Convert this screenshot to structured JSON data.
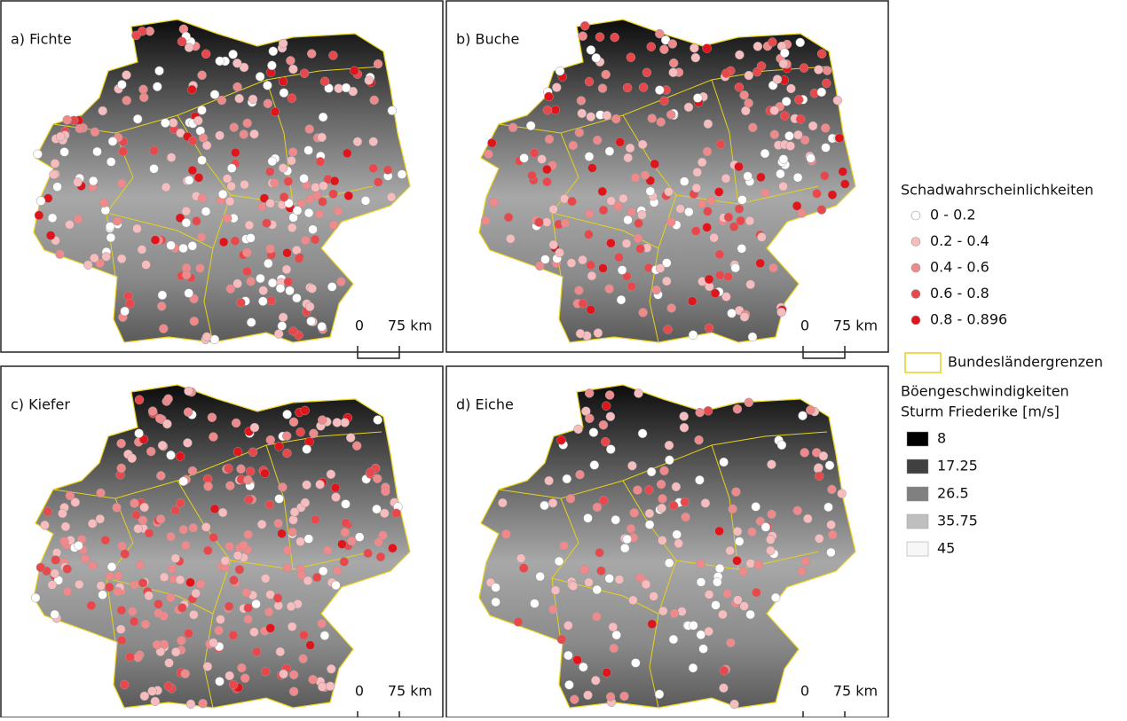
{
  "panels": [
    {
      "label": "a) Fichte"
    },
    {
      "label": "b) Buche"
    },
    {
      "label": "c) Kiefer"
    },
    {
      "label": "d) Eiche"
    }
  ],
  "scale_bar": {
    "zero": "0",
    "length": "75 km"
  },
  "legend": {
    "damage_title": "Schadwahrscheinlichkeiten",
    "damage_classes": [
      {
        "label": "0 - 0.2",
        "color": "#ffffff"
      },
      {
        "label": "0.2 - 0.4",
        "color": "#f6bcbe"
      },
      {
        "label": "0.4 - 0.6",
        "color": "#ef8a8c"
      },
      {
        "label": "0.6 - 0.8",
        "color": "#e8484c"
      },
      {
        "label": "0.8 - 0.896",
        "color": "#e0151b"
      }
    ],
    "border_label": "Bundesländergrenzen",
    "border_color": "#e8d21a",
    "gust_title": [
      "Böengeschwindigkeiten",
      "Sturm Friederike [m/s]"
    ],
    "gust_classes": [
      {
        "label": "8",
        "color": "#000000"
      },
      {
        "label": "17.25",
        "color": "#404040"
      },
      {
        "label": "26.5",
        "color": "#808080"
      },
      {
        "label": "35.75",
        "color": "#bfbfbf"
      },
      {
        "label": "45",
        "color": "#f7f7f7"
      }
    ]
  }
}
